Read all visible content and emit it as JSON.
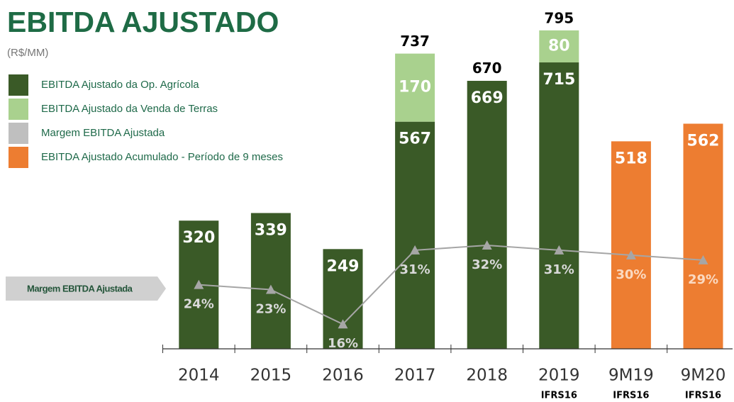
{
  "chart_data": {
    "type": "bar",
    "title": "EBITDA AJUSTADO",
    "subtitle": "(R$/MM)",
    "annotation": "Margem EBITDA Ajustada",
    "categories": [
      "2014",
      "2015",
      "2016",
      "2017",
      "2018",
      "2019",
      "9M19",
      "9M20"
    ],
    "sublabels": [
      null,
      null,
      null,
      null,
      null,
      "IFRS16",
      "IFRS16",
      "IFRS16"
    ],
    "series": [
      {
        "name": "EBITDA Ajustado da Op. Agrícola",
        "color": "#3a5a27",
        "values": [
          320,
          339,
          249,
          567,
          669,
          715,
          null,
          null
        ]
      },
      {
        "name": "EBITDA Ajustado da Venda de Terras",
        "color": "#a9d18e",
        "values": [
          null,
          null,
          null,
          170,
          null,
          80,
          null,
          null
        ]
      },
      {
        "name": "Margem EBITDA Ajustada",
        "color": "#bfbfbf",
        "type": "line",
        "axis": "y2",
        "values": [
          24,
          23,
          16,
          31,
          32,
          31,
          30,
          29
        ],
        "value_labels": [
          "24%",
          "23%",
          "16%",
          "31%",
          "32%",
          "31%",
          "30%",
          "29%"
        ]
      },
      {
        "name": "EBITDA Ajustado Acumulado - Período de 9 meses",
        "color": "#ed7d31",
        "values": [
          null,
          null,
          null,
          null,
          null,
          null,
          518,
          562
        ]
      }
    ],
    "totals": [
      null,
      null,
      null,
      737,
      670,
      795,
      null,
      null
    ],
    "ylim": [
      0,
      800
    ],
    "y2lim": [
      11,
      76
    ],
    "legend": "top-left"
  }
}
